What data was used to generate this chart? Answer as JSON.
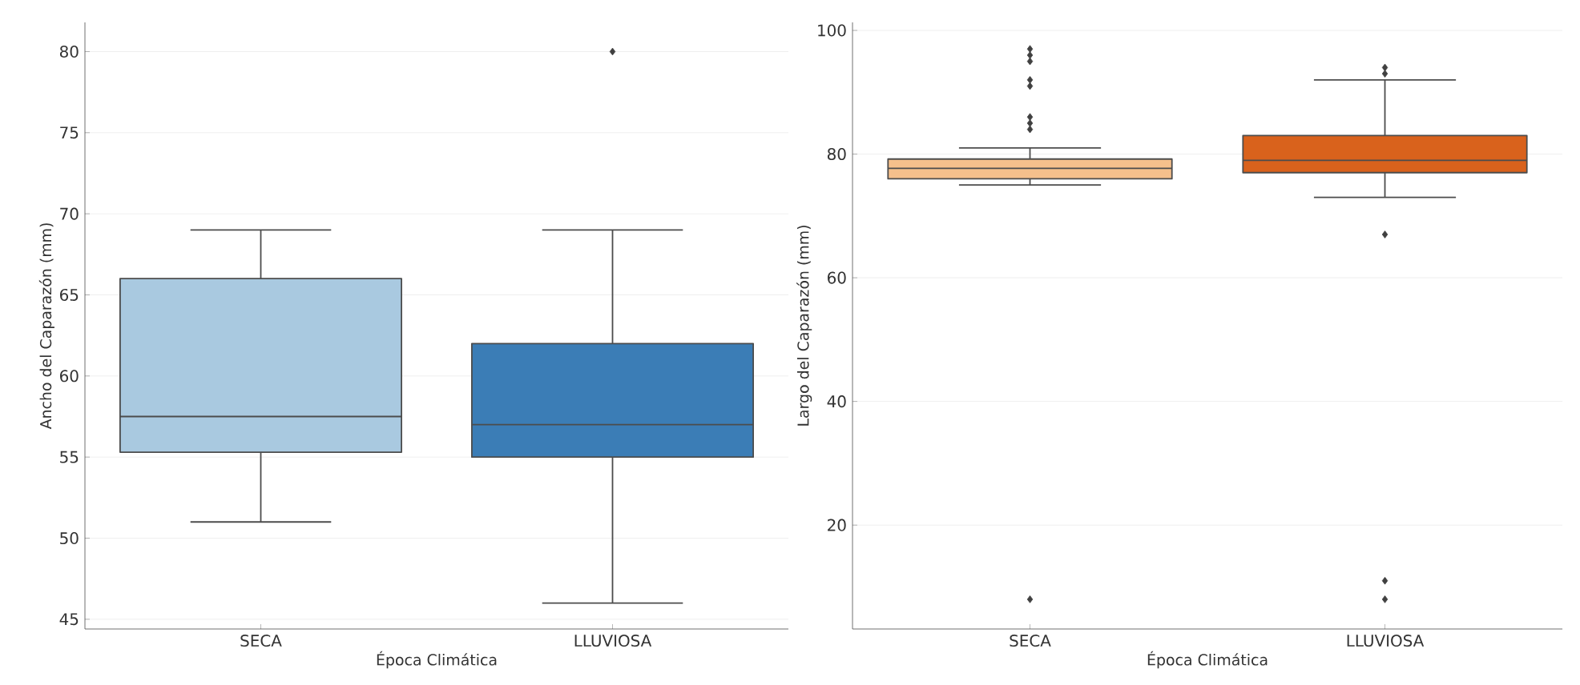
{
  "chart_data": [
    {
      "type": "box",
      "categories": [
        "SECA",
        "LLUVIOSA"
      ],
      "xlabel": "Época Climática",
      "ylabel": "Ancho del Caparazón (mm)",
      "ylim": [
        44.4,
        81.8
      ],
      "yticks": [
        45,
        50,
        55,
        60,
        65,
        70,
        75,
        80
      ],
      "grid": "y",
      "marker": "diamond",
      "colors": [
        "#a9c9e0",
        "#3b7db6"
      ],
      "boxes": [
        {
          "low": 51,
          "q1": 55.3,
          "median": 57.5,
          "q3": 66,
          "high": 69
        },
        {
          "low": 46,
          "q1": 55,
          "median": 57,
          "q3": 62,
          "high": 69,
          "outliers": [
            80
          ]
        }
      ]
    },
    {
      "type": "box",
      "categories": [
        "SECA",
        "LLUVIOSA"
      ],
      "xlabel": "Época Climática",
      "ylabel": "Largo del Caparazón (mm)",
      "ylim": [
        3.2,
        101.3
      ],
      "yticks": [
        20,
        40,
        60,
        80,
        100
      ],
      "grid": "y",
      "marker": "diamond",
      "colors": [
        "#f5c08c",
        "#d9621c"
      ],
      "boxes": [
        {
          "low": 75,
          "q1": 76,
          "median": 77.7,
          "q3": 79.2,
          "high": 81,
          "outliers": [
            97,
            96,
            95,
            92,
            91,
            86,
            85,
            84,
            8
          ]
        },
        {
          "low": 73,
          "q1": 77,
          "median": 79,
          "q3": 83,
          "high": 92,
          "outliers": [
            94,
            93,
            67,
            11,
            8
          ]
        }
      ]
    }
  ]
}
